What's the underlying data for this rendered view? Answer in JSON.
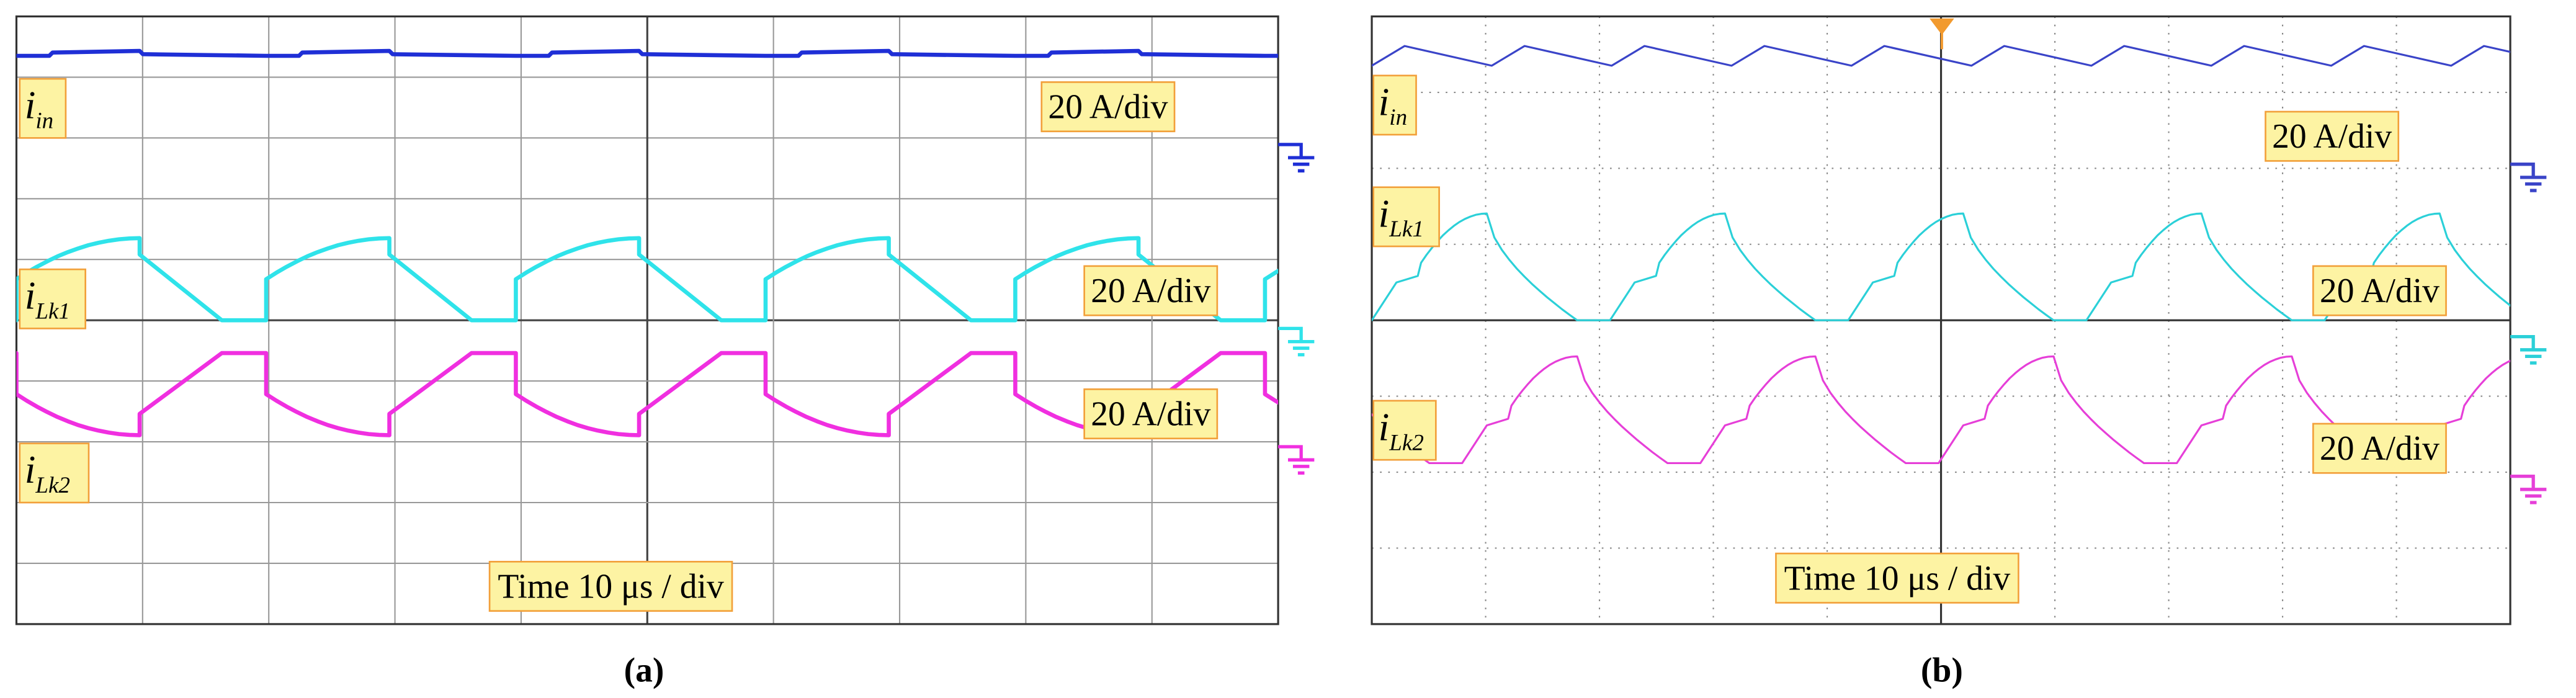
{
  "panels": [
    {
      "label": "(a)",
      "time_scale": "Time 10 μs / div",
      "channels": [
        {
          "symbol": "i",
          "subscript": "in",
          "scale": "20 A/div"
        },
        {
          "symbol": "i",
          "subscript": "Lk1",
          "scale": "20 A/div"
        },
        {
          "symbol": "i",
          "subscript": "Lk2",
          "scale": "20 A/div"
        }
      ]
    },
    {
      "label": "(b)",
      "time_scale": "Time 10 μs / div",
      "channels": [
        {
          "symbol": "i",
          "subscript": "in",
          "scale": "20 A/div"
        },
        {
          "symbol": "i",
          "subscript": "Lk1",
          "scale": "20 A/div"
        },
        {
          "symbol": "i",
          "subscript": "Lk2",
          "scale": "20 A/div"
        }
      ]
    }
  ]
}
